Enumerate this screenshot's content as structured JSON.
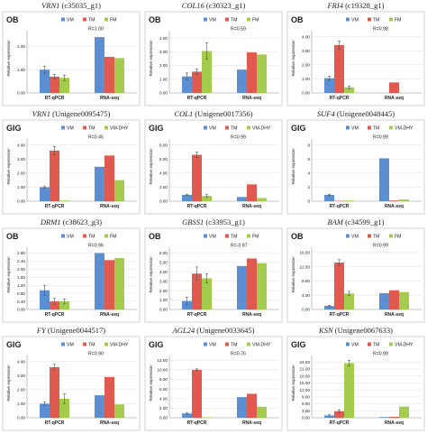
{
  "colors": {
    "s1": "#5b8fd2",
    "s2": "#e05a4f",
    "s3": "#a3cc4e",
    "panel_border": "#c8c8c8"
  },
  "chart_data": [
    {
      "type": "bar",
      "gene": "VRN1",
      "id": "(c35035_g1)",
      "tag": "OB",
      "legend": [
        "VM",
        "TM",
        "FM"
      ],
      "r": "R=1.00",
      "ylabel": "Relative expression",
      "categories": [
        "RT-qPCR",
        "RNA-seq"
      ],
      "yticks": [
        "0.00",
        "1.00",
        "2.00"
      ],
      "ylim": [
        0,
        2.6
      ],
      "series": [
        {
          "name": "VM",
          "values": [
            1.0,
            2.4
          ]
        },
        {
          "name": "TM",
          "values": [
            0.7,
            1.55
          ]
        },
        {
          "name": "FM",
          "values": [
            0.65,
            1.5
          ]
        }
      ],
      "err": [
        [
          0.15,
          0
        ],
        [
          0.1,
          0
        ],
        [
          0.12,
          0
        ]
      ]
    },
    {
      "type": "bar",
      "gene": "COL16",
      "id": "(c30323_g1)",
      "tag": "OB",
      "legend": [
        "VM",
        "TM",
        "FM"
      ],
      "r": "R=0.59",
      "ylabel": "Relative expression",
      "categories": [
        "RT-qPCR",
        "RNA-seq"
      ],
      "yticks": [
        "0.00",
        "1.00",
        "2.00",
        "3.00",
        "4.00"
      ],
      "ylim": [
        0,
        4.4
      ],
      "series": [
        {
          "name": "VM",
          "values": [
            1.2,
            1.7
          ]
        },
        {
          "name": "TM",
          "values": [
            1.55,
            2.95
          ]
        },
        {
          "name": "FM",
          "values": [
            3.05,
            2.8
          ]
        }
      ],
      "err": [
        [
          0.25,
          0
        ],
        [
          0.2,
          0
        ],
        [
          0.6,
          0
        ]
      ]
    },
    {
      "type": "bar",
      "gene": "FRI4",
      "id": "(c19328_g1)",
      "tag": "OB",
      "legend": [
        "VM",
        "TM",
        "FM"
      ],
      "r": "R=0.98",
      "ylabel": "Relative expression",
      "categories": [
        "RT-qPCR",
        "RNA-seq"
      ],
      "yticks": [
        "0.00",
        "1.00",
        "2.00",
        "3.00",
        "4.00"
      ],
      "ylim": [
        0,
        4.3
      ],
      "series": [
        {
          "name": "VM",
          "values": [
            1.05,
            0
          ]
        },
        {
          "name": "TM",
          "values": [
            3.4,
            0.75
          ]
        },
        {
          "name": "FM",
          "values": [
            0.4,
            0
          ]
        }
      ],
      "err": [
        [
          0.15,
          0
        ],
        [
          0.3,
          0
        ],
        [
          0.1,
          0
        ]
      ]
    },
    {
      "type": "bar",
      "gene": "VRN1",
      "id": "(Unigene0095475)",
      "tag": "GIG",
      "legend": [
        "VM",
        "TM",
        "VM-DHY"
      ],
      "r": "R=0.45",
      "ylabel": "Relative expression",
      "categories": [
        "RT-qPCR",
        "RNA-seq"
      ],
      "yticks": [
        "0.00",
        "1.00",
        "2.00",
        "3.00",
        "4.00"
      ],
      "ylim": [
        0,
        4.3
      ],
      "series": [
        {
          "name": "VM",
          "values": [
            1.0,
            2.45
          ]
        },
        {
          "name": "TM",
          "values": [
            3.6,
            3.25
          ]
        },
        {
          "name": "VM-DHY",
          "values": [
            0.05,
            1.5
          ]
        }
      ],
      "err": [
        [
          0.08,
          0
        ],
        [
          0.3,
          0
        ],
        [
          0,
          0
        ]
      ]
    },
    {
      "type": "bar",
      "gene": "COL1",
      "id": "(Unigene0017356)",
      "tag": "GIG",
      "legend": [
        "VM",
        "TM",
        "VM-DHY"
      ],
      "r": "R=0.99",
      "ylabel": "Relative expression",
      "categories": [
        "RT-qPCR",
        "RNA-seq"
      ],
      "yticks": [
        "0.00",
        "2.00",
        "4.00",
        "6.00",
        "8.00"
      ],
      "ylim": [
        0,
        8.6
      ],
      "series": [
        {
          "name": "VM",
          "values": [
            0.9,
            0.6
          ]
        },
        {
          "name": "TM",
          "values": [
            6.6,
            2.4
          ]
        },
        {
          "name": "VM-DHY",
          "values": [
            0.75,
            0.45
          ]
        }
      ],
      "err": [
        [
          0.1,
          0
        ],
        [
          0.4,
          0
        ],
        [
          0.2,
          0
        ]
      ]
    },
    {
      "type": "bar",
      "gene": "SUF4",
      "id": "(Unigene0048445)",
      "tag": "GIG",
      "legend": [
        "VM",
        "TM",
        "VM-DHY"
      ],
      "r": "R=0.99",
      "ylabel": "Relative expression",
      "categories": [
        "RT-qPCR",
        "RNA-seq"
      ],
      "yticks": [
        "0",
        "2",
        "4",
        "6",
        "8"
      ],
      "ylim": [
        0,
        8.6
      ],
      "series": [
        {
          "name": "VM",
          "values": [
            0.9,
            6.1
          ]
        },
        {
          "name": "TM",
          "values": [
            0.05,
            0.1
          ]
        },
        {
          "name": "VM-DHY",
          "values": [
            0.1,
            0.25
          ]
        }
      ],
      "err": [
        [
          0.1,
          0
        ],
        [
          0,
          0
        ],
        [
          0,
          0
        ]
      ]
    },
    {
      "type": "bar",
      "gene": "DRM1",
      "id": "(c38623_g3)",
      "tag": "OB",
      "legend": [
        "VM",
        "TM",
        "FM"
      ],
      "r": "R=0.96",
      "ylabel": "Relative expression",
      "categories": [
        "RT-qPCR",
        "RNA-seq"
      ],
      "yticks": [
        "0.00",
        "0.40",
        "0.80",
        "1.20",
        "1.60",
        "2.00",
        "2.40",
        "2.80"
      ],
      "ylim": [
        0,
        3.0
      ],
      "series": [
        {
          "name": "VM",
          "values": [
            0.95,
            2.8
          ]
        },
        {
          "name": "TM",
          "values": [
            0.4,
            2.45
          ]
        },
        {
          "name": "FM",
          "values": [
            0.4,
            2.55
          ]
        }
      ],
      "err": [
        [
          0.25,
          0
        ],
        [
          0.15,
          0
        ],
        [
          0.12,
          0
        ]
      ]
    },
    {
      "type": "bar",
      "gene": "GBSS1",
      "id": "(c33953_g1)",
      "tag": "OB",
      "legend": [
        "VM",
        "TM",
        "FM"
      ],
      "r": "R=-0.87",
      "ylabel": "Relative expression",
      "categories": [
        "RT-qPCR",
        "RNA-seq"
      ],
      "yticks": [
        "0.00",
        "1.00",
        "2.00",
        "3.00",
        "4.00",
        "5.00",
        "6.00"
      ],
      "ylim": [
        0,
        6.4
      ],
      "series": [
        {
          "name": "VM",
          "values": [
            0.9,
            4.6
          ]
        },
        {
          "name": "TM",
          "values": [
            3.8,
            5.4
          ]
        },
        {
          "name": "FM",
          "values": [
            3.3,
            4.9
          ]
        }
      ],
      "err": [
        [
          0.4,
          0
        ],
        [
          0.7,
          0
        ],
        [
          0.5,
          0
        ]
      ]
    },
    {
      "type": "bar",
      "gene": "BAM",
      "id": "(c34599_g1)",
      "tag": "OB",
      "legend": [
        "VM",
        "TM",
        "FM"
      ],
      "r": "R=0.99",
      "ylabel": "Relative expression",
      "categories": [
        "RT-qPCR",
        "RNA-seq"
      ],
      "yticks": [
        "0.00",
        "4.00",
        "8.00",
        "12.00",
        "16.00"
      ],
      "ylim": [
        0,
        17
      ],
      "series": [
        {
          "name": "VM",
          "values": [
            1.0,
            4.6
          ]
        },
        {
          "name": "TM",
          "values": [
            13.2,
            5.4
          ]
        },
        {
          "name": "FM",
          "values": [
            4.5,
            4.9
          ]
        }
      ],
      "err": [
        [
          0.2,
          0
        ],
        [
          0.8,
          0
        ],
        [
          0.6,
          0
        ]
      ]
    },
    {
      "type": "bar",
      "gene": "FY",
      "id": "(Unigene0044517)",
      "tag": "GIG",
      "legend": [
        "VM",
        "TM",
        "VM-DHY"
      ],
      "r": "R=0.90",
      "ylabel": "Relative expression",
      "categories": [
        "RT-qPCR",
        "RNA-seq"
      ],
      "yticks": [
        "0.00",
        "1.00",
        "2.00",
        "3.00",
        "4.00"
      ],
      "ylim": [
        0,
        4.3
      ],
      "series": [
        {
          "name": "VM",
          "values": [
            1.0,
            1.6
          ]
        },
        {
          "name": "TM",
          "values": [
            3.6,
            2.9
          ]
        },
        {
          "name": "VM-DHY",
          "values": [
            1.35,
            0.95
          ]
        }
      ],
      "err": [
        [
          0.12,
          0
        ],
        [
          0.2,
          0
        ],
        [
          0.35,
          0
        ]
      ]
    },
    {
      "type": "bar",
      "gene": "AGL24",
      "id": "(Unigene0033645)",
      "tag": "GIG",
      "legend": [
        "VM",
        "TM",
        "VM-DHY"
      ],
      "r": "R=0.76",
      "ylabel": "Relative expression",
      "categories": [
        "RT-qPCR",
        "RNA-seq"
      ],
      "yticks": [
        "0.00",
        "2.00",
        "4.00",
        "6.00",
        "8.00",
        "10.00",
        "12.00"
      ],
      "ylim": [
        0,
        12.6
      ],
      "series": [
        {
          "name": "VM",
          "values": [
            0.9,
            4.3
          ]
        },
        {
          "name": "TM",
          "values": [
            10.0,
            5.0
          ]
        },
        {
          "name": "VM-DHY",
          "values": [
            0.1,
            2.3
          ]
        }
      ],
      "err": [
        [
          0.2,
          0
        ],
        [
          0.2,
          0
        ],
        [
          0,
          0
        ]
      ]
    },
    {
      "type": "bar",
      "gene": "KSN",
      "id": "(Unigene0067633)",
      "tag": "GIG",
      "legend": [
        "VM",
        "TM",
        "VM-DHY"
      ],
      "r": "R=0.99",
      "ylabel": "Relative expression",
      "categories": [
        "RT-qPCR",
        "RNA-seq"
      ],
      "yticks": [
        "0.00",
        "3.00",
        "6.00",
        "9.00",
        "12.00",
        "15.00",
        "18.00",
        "21.00",
        "24.00"
      ],
      "ylim": [
        0,
        26
      ],
      "series": [
        {
          "name": "VM",
          "values": [
            1.0,
            0.3
          ]
        },
        {
          "name": "TM",
          "values": [
            2.8,
            0.4
          ]
        },
        {
          "name": "VM-DHY",
          "values": [
            23.5,
            4.8
          ]
        }
      ],
      "err": [
        [
          0.3,
          0
        ],
        [
          0.6,
          0
        ],
        [
          1.2,
          0
        ]
      ]
    }
  ]
}
